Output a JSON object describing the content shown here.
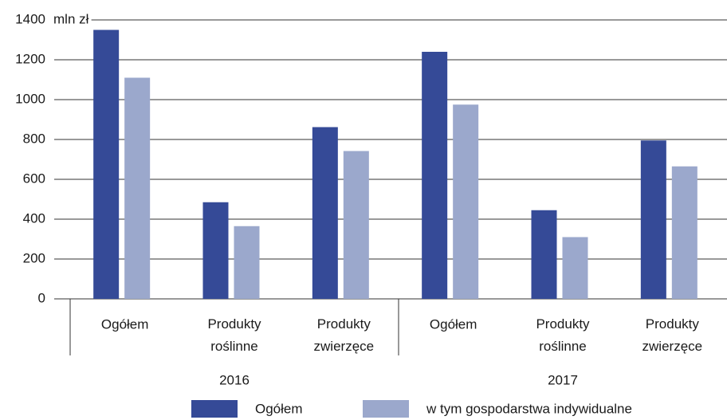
{
  "chart_data": {
    "type": "bar",
    "y_unit_label": "mln zł",
    "categories": [
      "Ogółem",
      "Produkty roślinne",
      "Produkty zwierzęce",
      "Ogółem",
      "Produkty roślinne",
      "Produkty zwierzęce"
    ],
    "category_groups": [
      "2016",
      "2017"
    ],
    "series": [
      {
        "name": "Ogółem",
        "color": "#354a97",
        "values": [
          1350,
          485,
          862,
          1240,
          445,
          795
        ]
      },
      {
        "name": "w tym gospodarstwa indywidualne",
        "color": "#9ba8cc",
        "values": [
          1110,
          365,
          742,
          975,
          310,
          665
        ]
      }
    ],
    "ylim": [
      0,
      1400
    ],
    "yticks": [
      0,
      200,
      400,
      600,
      800,
      1000,
      1200,
      1400
    ],
    "grid": true,
    "legend": "bottom"
  }
}
